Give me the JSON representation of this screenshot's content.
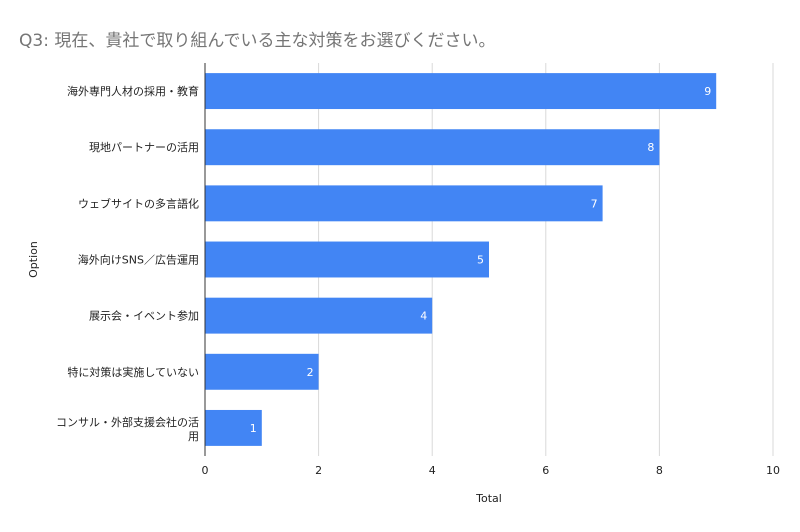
{
  "chart_data": {
    "type": "bar",
    "orientation": "horizontal",
    "title": "Q3: 現在、貴社で取り組んでいる主な対策をお選びください。",
    "xlabel": "Total",
    "ylabel": "Option",
    "categories": [
      "海外専門人材の採用・教育",
      "現地パートナーの活用",
      "ウェブサイトの多言語化",
      "海外向けSNS／広告運用",
      "展示会・イベント参加",
      "特に対策は実施していない",
      "コンサル・外部支援会社の活用"
    ],
    "values": [
      9,
      8,
      7,
      5,
      4,
      2,
      1
    ],
    "xlim": [
      0,
      10
    ],
    "xticks": [
      0,
      2,
      4,
      6,
      8,
      10
    ],
    "grid": true,
    "data_labels": true,
    "bar_color": "#4285f4"
  }
}
